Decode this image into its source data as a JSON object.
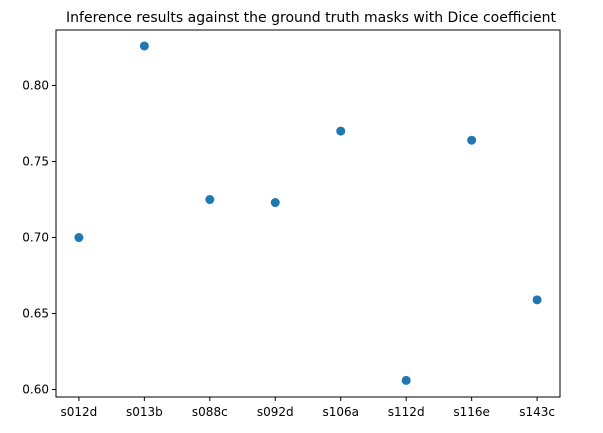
{
  "chart_data": {
    "type": "scatter",
    "title": "Inference results against the ground truth masks with Dice coefficient",
    "xlabel": "",
    "ylabel": "",
    "categories": [
      "s012d",
      "s013b",
      "s088c",
      "s092d",
      "s106a",
      "s112d",
      "s116e",
      "s143c"
    ],
    "values": [
      0.7,
      0.826,
      0.725,
      0.723,
      0.77,
      0.606,
      0.764,
      0.659
    ],
    "ylim": [
      0.5951,
      0.8365
    ],
    "yticks": [
      0.6,
      0.65,
      0.7,
      0.75,
      0.8
    ],
    "ytick_labels": [
      "0.60",
      "0.65",
      "0.70",
      "0.75",
      "0.80"
    ],
    "grid": false,
    "marker_color": "#1f77b4"
  }
}
